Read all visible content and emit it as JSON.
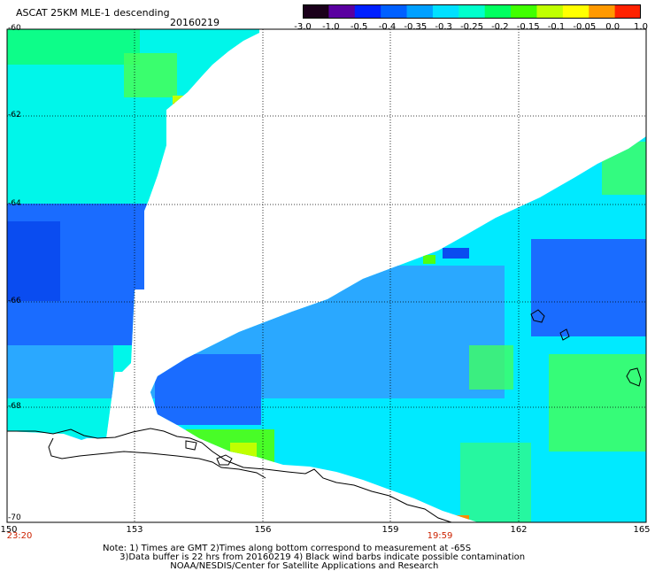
{
  "header": {
    "title": "ASCAT 25KM MLE-1 descending",
    "date": "20160219"
  },
  "colorbar": {
    "ticks": [
      "-3.0",
      "-1.0",
      "-0.5",
      "-0.4",
      "-0.35",
      "-0.3",
      "-0.25",
      "-0.2",
      "-0.15",
      "-0.1",
      "-0.05",
      "0.0",
      "1.0"
    ],
    "colors": [
      "#1a001a",
      "#5a00a0",
      "#0020ff",
      "#0060ff",
      "#00a0ff",
      "#00e0ff",
      "#00ffcc",
      "#00ff60",
      "#40ff00",
      "#c0ff00",
      "#ffff00",
      "#ff9900",
      "#ff2200"
    ]
  },
  "map": {
    "lon_labels": [
      "150",
      "153",
      "156",
      "159",
      "162",
      "165"
    ],
    "lat_labels": [
      "-60",
      "-62",
      "-64",
      "-66",
      "-68",
      "-70"
    ],
    "time_labels": [
      "23:20",
      "19:59"
    ],
    "colors": {
      "deep_blue": "#0a4cf0",
      "blue": "#1a6cff",
      "light_blue": "#2aa8ff",
      "cyan": "#00eaff",
      "aqua": "#00ffd8",
      "green": "#10ff70",
      "lime": "#50ff10",
      "orange": "#ff8c00",
      "coast": "#000000"
    }
  },
  "footer": {
    "line1": "Note: 1) Times are GMT 2)Times along bottom correspond to measurement at -65S",
    "line2": "3)Data buffer is 22 hrs from 20160219 4) Black wind barbs indicate possible contamination",
    "line3": "NOAA/NESDIS/Center for Satellite Applications and Research"
  }
}
